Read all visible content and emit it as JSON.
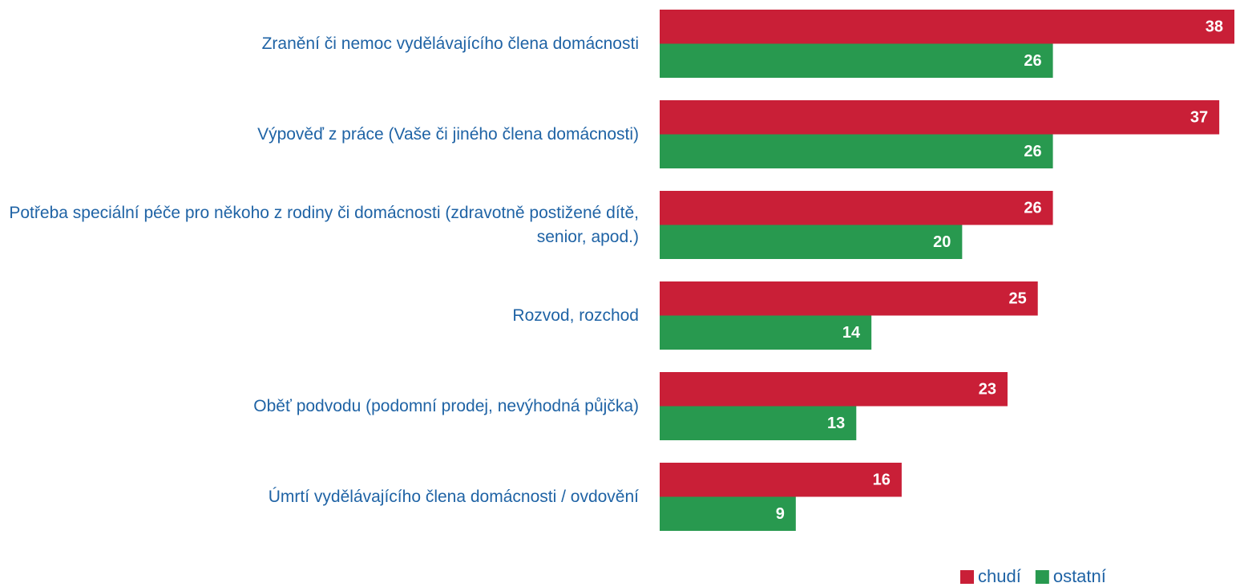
{
  "chart_data": {
    "type": "hbar",
    "categories": [
      "Zranění či nemoc vydělávajícího člena domácnosti",
      "Výpověď z práce (Vaše či jiného člena domácnosti)",
      "Potřeba speciální péče pro někoho z rodiny či domácnosti (zdravotně postižené dítě, senior, apod.)",
      "Rozvod, rozchod",
      "Oběť podvodu (podomní prodej, nevýhodná půjčka)",
      "Úmrtí vydělávajícího člena domácnosti / ovdovění"
    ],
    "series": [
      {
        "name": "chudí",
        "color": "#c91f37",
        "values": [
          38,
          37,
          26,
          25,
          23,
          16
        ]
      },
      {
        "name": "ostatní",
        "color": "#28994f",
        "values": [
          26,
          26,
          20,
          14,
          13,
          9
        ]
      }
    ],
    "legend": "bottom-right"
  }
}
